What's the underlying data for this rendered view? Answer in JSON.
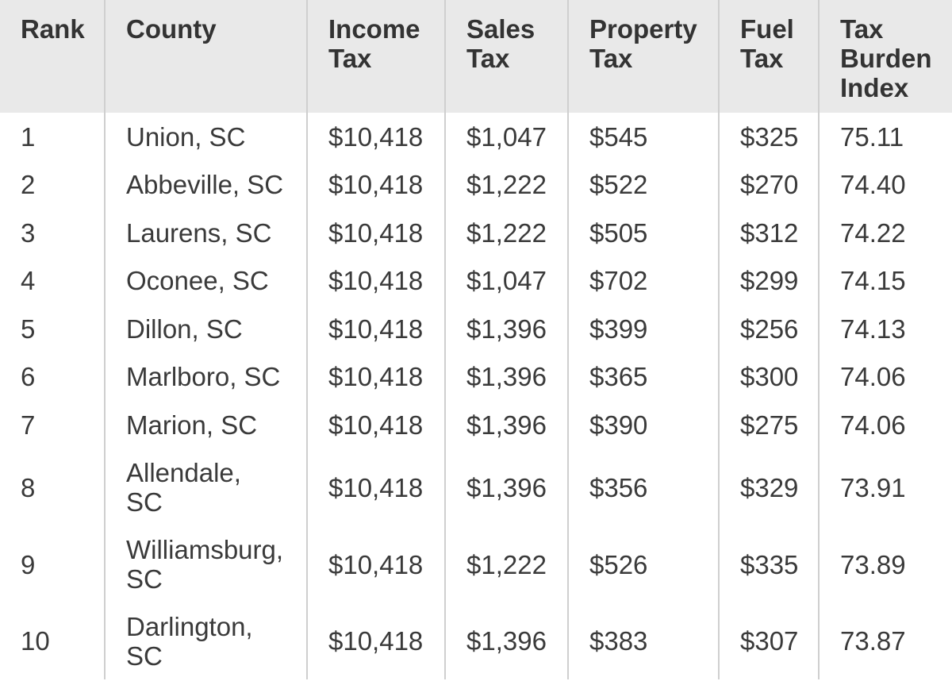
{
  "table": {
    "headers": {
      "rank": "Rank",
      "county": "County",
      "income": [
        "Income",
        "Tax"
      ],
      "sales": [
        "Sales",
        "Tax"
      ],
      "property": [
        "Property",
        "Tax"
      ],
      "fuel": [
        "Fuel",
        "Tax"
      ],
      "index": [
        "Tax",
        "Burden",
        "Index"
      ]
    },
    "rows": [
      {
        "rank": "1",
        "county": "Union, SC",
        "income": "$10,418",
        "sales": "$1,047",
        "property": "$545",
        "fuel": "$325",
        "index": "75.11"
      },
      {
        "rank": "2",
        "county": "Abbeville, SC",
        "income": "$10,418",
        "sales": "$1,222",
        "property": "$522",
        "fuel": "$270",
        "index": "74.40"
      },
      {
        "rank": "3",
        "county": "Laurens, SC",
        "income": "$10,418",
        "sales": "$1,222",
        "property": "$505",
        "fuel": "$312",
        "index": "74.22"
      },
      {
        "rank": "4",
        "county": "Oconee, SC",
        "income": "$10,418",
        "sales": "$1,047",
        "property": "$702",
        "fuel": "$299",
        "index": "74.15"
      },
      {
        "rank": "5",
        "county": "Dillon, SC",
        "income": "$10,418",
        "sales": "$1,396",
        "property": "$399",
        "fuel": "$256",
        "index": "74.13"
      },
      {
        "rank": "6",
        "county": "Marlboro, SC",
        "income": "$10,418",
        "sales": "$1,396",
        "property": "$365",
        "fuel": "$300",
        "index": "74.06"
      },
      {
        "rank": "7",
        "county": "Marion, SC",
        "income": "$10,418",
        "sales": "$1,396",
        "property": "$390",
        "fuel": "$275",
        "index": "74.06"
      },
      {
        "rank": "8",
        "county": [
          "Allendale,",
          "SC"
        ],
        "income": "$10,418",
        "sales": "$1,396",
        "property": "$356",
        "fuel": "$329",
        "index": "73.91"
      },
      {
        "rank": "9",
        "county": [
          "Williamsburg,",
          "SC"
        ],
        "income": "$10,418",
        "sales": "$1,222",
        "property": "$526",
        "fuel": "$335",
        "index": "73.89"
      },
      {
        "rank": "10",
        "county": [
          "Darlington,",
          "SC"
        ],
        "income": "$10,418",
        "sales": "$1,396",
        "property": "$383",
        "fuel": "$307",
        "index": "73.87"
      }
    ]
  },
  "colors": {
    "header_bg": "#e9e9e9",
    "border": "#cfcfcf",
    "text": "#3a3a3a"
  }
}
